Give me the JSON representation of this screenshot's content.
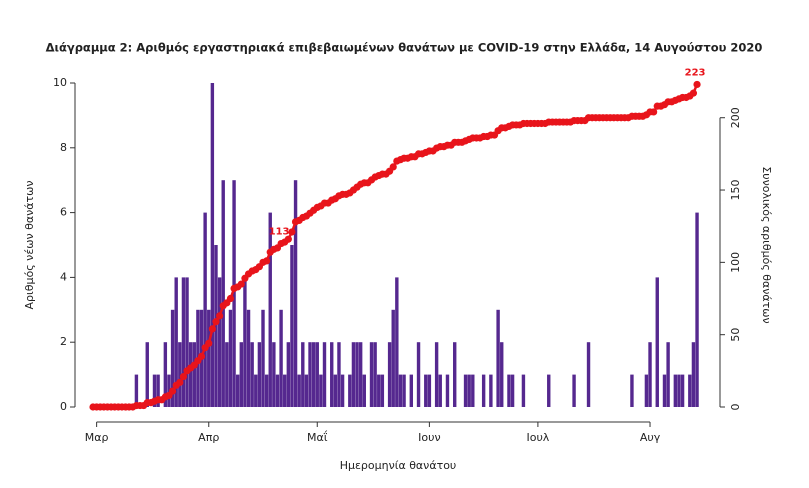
{
  "chart_data": {
    "type": "bar_line",
    "title": "Διάγραμμα 2: Αριθμός εργαστηριακά επιβεβαιωμένων θανάτων με COVID-19 στην Ελλάδα, 14 Αυγούστου 2020",
    "x_label": "Ημερομηνία θανάτου",
    "y_label": "Αριθμός νέων θανάτων",
    "y2_label": "Συνολικός αριθμός θανάτων",
    "categories": [
      null,
      "Μαρ",
      null,
      null,
      null,
      null,
      null,
      null,
      null,
      null,
      null,
      null,
      null,
      null,
      null,
      null,
      null,
      null,
      null,
      null,
      null,
      null,
      null,
      null,
      null,
      null,
      null,
      null,
      null,
      null,
      null,
      null,
      "Απρ",
      null,
      null,
      null,
      null,
      null,
      null,
      null,
      null,
      null,
      null,
      null,
      null,
      null,
      null,
      null,
      null,
      null,
      null,
      null,
      null,
      null,
      null,
      null,
      null,
      null,
      null,
      null,
      null,
      null,
      "Μαΐ",
      null,
      null,
      null,
      null,
      null,
      null,
      null,
      null,
      null,
      null,
      null,
      null,
      null,
      null,
      null,
      null,
      null,
      null,
      null,
      null,
      null,
      null,
      null,
      null,
      null,
      null,
      null,
      null,
      null,
      null,
      "Ιουν",
      null,
      null,
      null,
      null,
      null,
      null,
      null,
      null,
      null,
      null,
      null,
      null,
      null,
      null,
      null,
      null,
      null,
      null,
      null,
      null,
      null,
      null,
      null,
      null,
      null,
      null,
      null,
      null,
      null,
      "Ιουλ",
      null,
      null,
      null,
      null,
      null,
      null,
      null,
      null,
      null,
      null,
      null,
      null,
      null,
      null,
      null,
      null,
      null,
      null,
      null,
      null,
      null,
      null,
      null,
      null,
      null,
      null,
      null,
      null,
      null,
      null,
      "Αυγ",
      null,
      null,
      null,
      null,
      null,
      null,
      null,
      null,
      null,
      null,
      null,
      null,
      null
    ],
    "series": [
      {
        "color": "#55288f",
        "values": [
          0,
          0,
          0,
          0,
          0,
          0,
          0,
          0,
          0,
          0,
          0,
          0,
          1,
          0,
          0,
          2,
          0,
          1,
          1,
          0,
          2,
          1,
          3,
          4,
          2,
          4,
          4,
          2,
          2,
          3,
          3,
          6,
          3,
          10,
          5,
          4,
          7,
          2,
          3,
          7,
          1,
          2,
          4,
          3,
          2,
          1,
          2,
          3,
          1,
          6,
          2,
          1,
          3,
          1,
          2,
          5,
          7,
          1,
          2,
          1,
          2,
          2,
          2,
          1,
          2,
          0,
          2,
          1,
          2,
          1,
          0,
          1,
          2,
          2,
          2,
          1,
          0,
          2,
          2,
          1,
          1,
          0,
          2,
          3,
          4,
          1,
          1,
          0,
          1,
          0,
          2,
          0,
          1,
          1,
          0,
          2,
          1,
          0,
          1,
          0,
          2,
          0,
          0,
          1,
          1,
          1,
          0,
          0,
          1,
          0,
          1,
          0,
          3,
          2,
          0,
          1,
          1,
          0,
          0,
          1,
          0,
          0,
          0,
          0,
          0,
          0,
          1,
          0,
          0,
          0,
          0,
          0,
          0,
          1,
          0,
          0,
          0,
          2,
          0,
          0,
          0,
          0,
          0,
          0,
          0,
          0,
          0,
          0,
          0,
          1,
          0,
          0,
          0,
          1,
          2,
          0,
          4,
          0,
          1,
          2,
          0,
          1,
          1,
          1,
          0,
          1,
          2,
          6
        ]
      },
      {
        "color": "#e8141b",
        "axis": "y2",
        "values": [
          0,
          0,
          0,
          0,
          0,
          0,
          0,
          0,
          0,
          0,
          0,
          0,
          1,
          1,
          1,
          3,
          3,
          4,
          5,
          5,
          7,
          8,
          11,
          15,
          17,
          21,
          25,
          27,
          29,
          32,
          35,
          41,
          44,
          54,
          59,
          63,
          70,
          72,
          75,
          82,
          83,
          85,
          89,
          92,
          94,
          95,
          97,
          100,
          101,
          107,
          109,
          110,
          113,
          114,
          116,
          121,
          128,
          129,
          131,
          132,
          134,
          136,
          138,
          139,
          141,
          141,
          143,
          144,
          146,
          147,
          147,
          148,
          150,
          152,
          154,
          155,
          155,
          157,
          159,
          160,
          161,
          161,
          163,
          166,
          170,
          171,
          172,
          172,
          173,
          173,
          175,
          175,
          176,
          177,
          177,
          179,
          180,
          180,
          181,
          181,
          183,
          183,
          183,
          184,
          185,
          186,
          186,
          186,
          187,
          187,
          188,
          188,
          191,
          193,
          193,
          194,
          195,
          195,
          195,
          196,
          196,
          196,
          196,
          196,
          196,
          196,
          197,
          197,
          197,
          197,
          197,
          197,
          197,
          198,
          198,
          198,
          198,
          200,
          200,
          200,
          200,
          200,
          200,
          200,
          200,
          200,
          200,
          200,
          200,
          201,
          201,
          201,
          201,
          202,
          204,
          204,
          208,
          208,
          209,
          211,
          211,
          212,
          213,
          214,
          214,
          215,
          217,
          223
        ]
      }
    ],
    "ylim": [
      0,
      10
    ],
    "yticks": [
      0,
      2,
      4,
      6,
      8,
      10
    ],
    "y2lim": [
      0,
      224
    ],
    "y2ticks": [
      0,
      50,
      100,
      150,
      200
    ],
    "grid": false
  }
}
